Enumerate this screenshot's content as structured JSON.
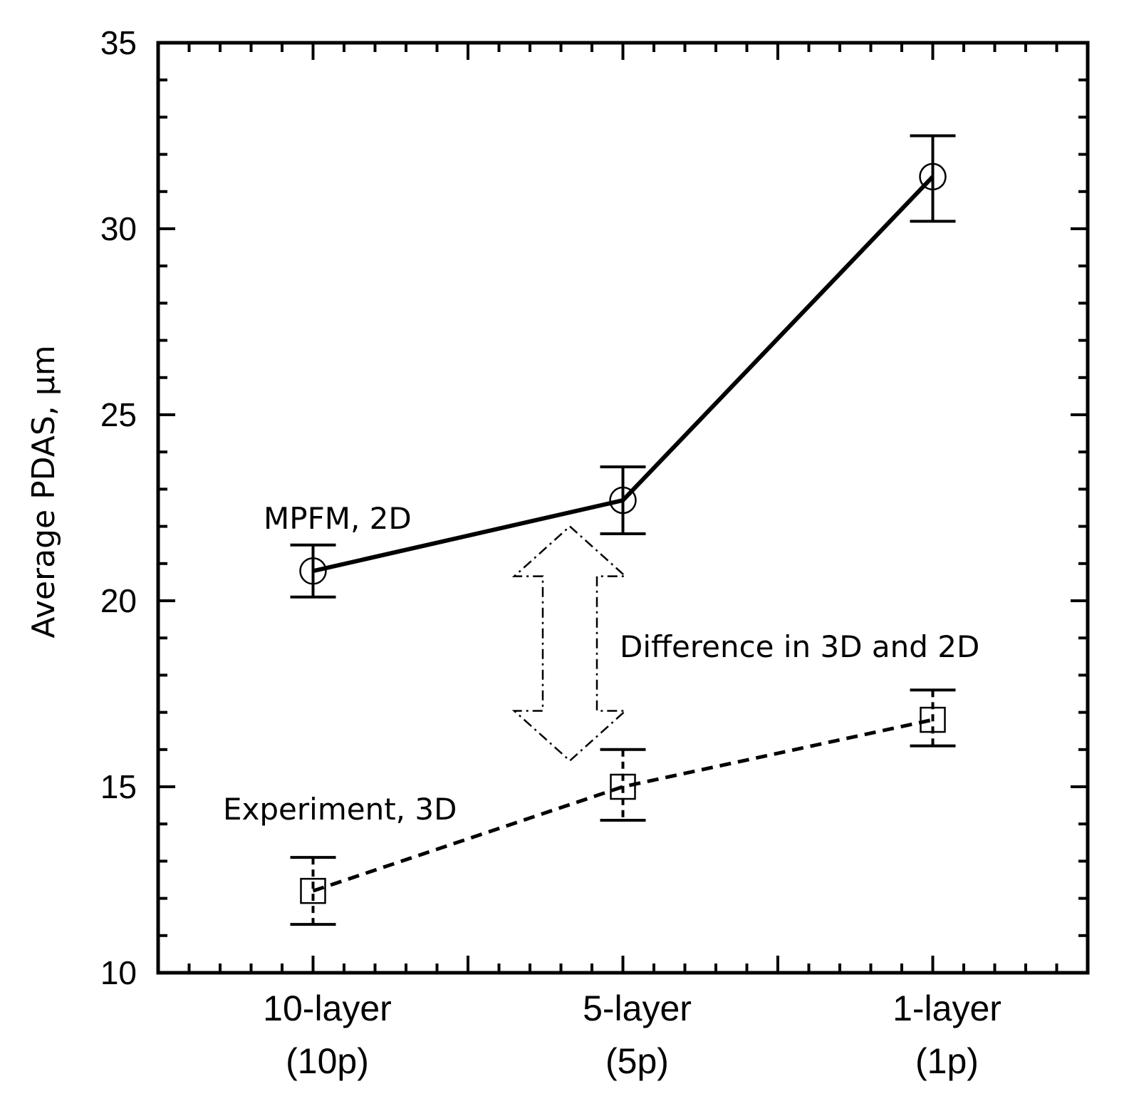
{
  "chart_data": {
    "type": "line",
    "categories": [
      {
        "line1": "10-layer",
        "line2": "(10p)"
      },
      {
        "line1": "5-layer",
        "line2": "(5p)"
      },
      {
        "line1": "1-layer",
        "line2": "(1p)"
      }
    ],
    "ylabel": "Average PDAS,  μm",
    "xlabel": "",
    "ylim": [
      10,
      35
    ],
    "yticks": [
      10,
      15,
      20,
      25,
      30,
      35
    ],
    "series": [
      {
        "name": "MPFM, 2D",
        "marker": "circle",
        "line": "solid",
        "values": [
          20.8,
          22.7,
          31.4
        ],
        "error_low": [
          20.1,
          21.8,
          30.2
        ],
        "error_high": [
          21.5,
          23.6,
          32.5
        ]
      },
      {
        "name": "Experiment, 3D",
        "marker": "square",
        "line": "dashed",
        "values": [
          12.2,
          15.0,
          16.8
        ],
        "error_low": [
          11.3,
          14.1,
          16.1
        ],
        "error_high": [
          13.1,
          16.0,
          17.6
        ]
      }
    ],
    "annotations": [
      {
        "text": "MPFM, 2D",
        "near_series": 0
      },
      {
        "text": "Experiment, 3D",
        "near_series": 1
      },
      {
        "text": "Difference in 3D and 2D",
        "type": "double-arrow",
        "from": 15.7,
        "to": 22.0
      }
    ]
  }
}
